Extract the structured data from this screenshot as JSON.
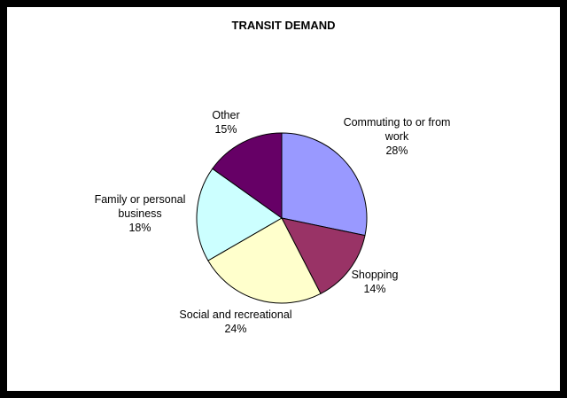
{
  "chart_data": {
    "type": "pie",
    "title": "TRANSIT DEMAND",
    "categories": [
      "Commuting to or from work",
      "Shopping",
      "Social and recreational",
      "Family or personal business",
      "Other"
    ],
    "values": [
      28,
      14,
      24,
      18,
      15
    ],
    "value_labels": [
      "28%",
      "14%",
      "24%",
      "18%",
      "15%"
    ],
    "colors": [
      "#9999ff",
      "#993366",
      "#ffffcc",
      "#ccffff",
      "#660066"
    ]
  }
}
